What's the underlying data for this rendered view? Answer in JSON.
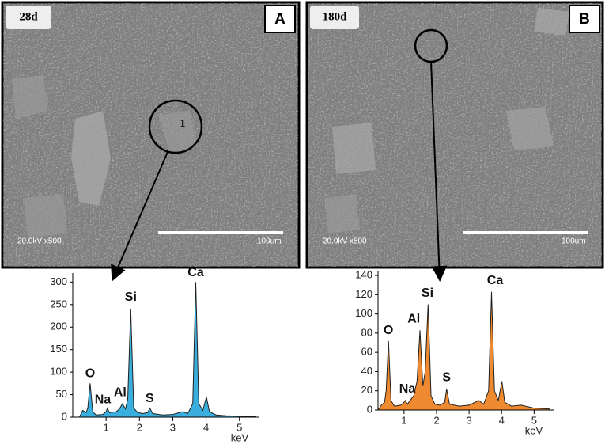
{
  "panels": [
    {
      "label": "A",
      "time": "28d",
      "marker": "1",
      "info": "20.0kV x500",
      "scale": "100um"
    },
    {
      "label": "B",
      "time": "180d",
      "info": "20.0kV x500",
      "scale": "100um"
    }
  ],
  "chart_data": [
    {
      "type": "area",
      "color": "#3aaedc",
      "xlabel": "keV",
      "x": [
        0.2,
        0.3,
        0.4,
        0.45,
        0.52,
        0.6,
        0.7,
        0.9,
        1.0,
        1.04,
        1.1,
        1.3,
        1.4,
        1.49,
        1.58,
        1.65,
        1.74,
        1.83,
        1.95,
        2.1,
        2.25,
        2.31,
        2.4,
        2.7,
        3.0,
        3.3,
        3.45,
        3.6,
        3.69,
        3.78,
        3.9,
        4.01,
        4.1,
        4.3,
        4.6,
        5.0,
        5.5
      ],
      "values": [
        0,
        15,
        10,
        20,
        75,
        12,
        5,
        6,
        12,
        20,
        10,
        12,
        18,
        30,
        18,
        40,
        240,
        20,
        10,
        8,
        10,
        20,
        8,
        5,
        6,
        12,
        8,
        30,
        300,
        30,
        15,
        45,
        12,
        5,
        3,
        2,
        1
      ],
      "xlim": [
        0,
        5.6
      ],
      "ylim": [
        0,
        320
      ],
      "xticks": [
        1,
        2,
        3,
        4,
        5
      ],
      "yticks": [
        0,
        50,
        100,
        150,
        200,
        250,
        300
      ],
      "annotations": [
        {
          "text": "O",
          "x": 0.52,
          "y": 80
        },
        {
          "text": "Na",
          "x": 0.9,
          "y": 22
        },
        {
          "text": "Al",
          "x": 1.42,
          "y": 38
        },
        {
          "text": "Si",
          "x": 1.74,
          "y": 250
        },
        {
          "text": "S",
          "x": 2.31,
          "y": 25
        },
        {
          "text": "Ca",
          "x": 3.69,
          "y": 305
        }
      ]
    },
    {
      "type": "area",
      "color": "#f08a30",
      "xlabel": "keV",
      "x": [
        0.2,
        0.3,
        0.4,
        0.45,
        0.52,
        0.6,
        0.7,
        0.9,
        1.0,
        1.04,
        1.1,
        1.3,
        1.4,
        1.49,
        1.58,
        1.65,
        1.74,
        1.83,
        1.95,
        2.1,
        2.25,
        2.31,
        2.4,
        2.7,
        3.0,
        3.3,
        3.45,
        3.6,
        3.69,
        3.78,
        3.9,
        4.01,
        4.1,
        4.3,
        4.6,
        5.0,
        5.5
      ],
      "values": [
        0,
        5,
        8,
        20,
        72,
        10,
        4,
        5,
        8,
        10,
        6,
        15,
        30,
        83,
        25,
        40,
        110,
        15,
        6,
        5,
        8,
        22,
        6,
        4,
        5,
        10,
        6,
        20,
        123,
        20,
        10,
        30,
        8,
        4,
        5,
        2,
        1
      ],
      "xlim": [
        0.2,
        5.6
      ],
      "ylim": [
        0,
        145
      ],
      "xticks": [
        1,
        2,
        3,
        4,
        5
      ],
      "yticks": [
        0,
        20,
        40,
        60,
        80,
        100,
        120,
        140
      ],
      "annotations": [
        {
          "text": "O",
          "x": 0.52,
          "y": 75
        },
        {
          "text": "Na",
          "x": 1.1,
          "y": 14
        },
        {
          "text": "Al",
          "x": 1.3,
          "y": 87
        },
        {
          "text": "Si",
          "x": 1.72,
          "y": 114
        },
        {
          "text": "S",
          "x": 2.31,
          "y": 26
        },
        {
          "text": "Ca",
          "x": 3.8,
          "y": 127
        }
      ]
    }
  ]
}
